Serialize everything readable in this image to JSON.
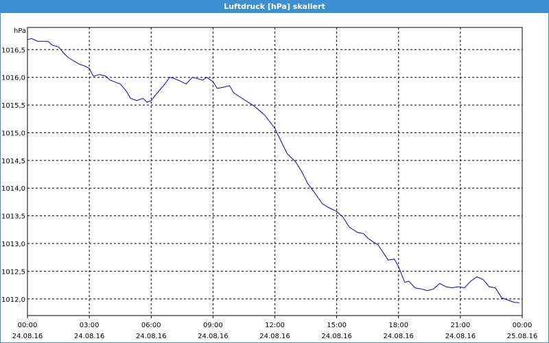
{
  "window": {
    "title": "Luftdruck [hPa] skaliert"
  },
  "chart_data": {
    "type": "line",
    "title": "Luftdruck [hPa] skaliert",
    "ylabel": "hPa",
    "xlabel": "",
    "ylim": [
      1011.7,
      1016.9
    ],
    "xlim": [
      0,
      24
    ],
    "grid": true,
    "line_color": "#0000cc",
    "yticks": [
      "1012,0",
      "1012,5",
      "1013,0",
      "1013,5",
      "1014,0",
      "1014,5",
      "1015,0",
      "1015,5",
      "1016,0",
      "1016,5"
    ],
    "ytick_values": [
      1012.0,
      1012.5,
      1013.0,
      1013.5,
      1014.0,
      1014.5,
      1015.0,
      1015.5,
      1016.0,
      1016.5
    ],
    "xticks": [
      {
        "time": "00:00",
        "date": "24.08.16"
      },
      {
        "time": "03:00",
        "date": "24.08.16"
      },
      {
        "time": "06:00",
        "date": "24.08.16"
      },
      {
        "time": "09:00",
        "date": "24.08.16"
      },
      {
        "time": "12:00",
        "date": "24.08.16"
      },
      {
        "time": "15:00",
        "date": "24.08.16"
      },
      {
        "time": "18:00",
        "date": "24.08.16"
      },
      {
        "time": "21:00",
        "date": "24.08.16"
      },
      {
        "time": "00:00",
        "date": "25.08.16"
      }
    ],
    "series": [
      {
        "x": [
          0,
          0.2,
          0.5,
          1.0,
          1.2,
          1.5,
          1.8,
          2.0,
          2.5,
          2.8,
          3.0,
          3.2,
          3.5,
          3.8,
          4.0,
          4.5,
          4.8,
          5.0,
          5.3,
          5.6,
          5.8,
          6.0,
          6.3,
          6.6,
          6.9,
          7.1,
          7.3,
          7.7,
          8.0,
          8.2,
          8.5,
          8.7,
          9.0,
          9.2,
          9.5,
          9.8,
          10.0,
          10.5,
          11.0,
          11.5,
          12.0,
          12.3,
          12.6,
          13.0,
          13.3,
          13.6,
          14.0,
          14.3,
          14.6,
          15.0,
          15.3,
          15.6,
          16.0,
          16.3,
          16.5,
          16.8,
          17.0,
          17.5,
          17.8,
          18.0,
          18.3,
          18.5,
          18.8,
          19.1,
          19.4,
          19.7,
          20.0,
          20.3,
          20.6,
          20.9,
          21.2,
          21.5,
          21.8,
          22.1,
          22.4,
          22.7,
          23.0,
          23.3,
          23.6,
          23.85
        ],
        "values": [
          1016.68,
          1016.7,
          1016.65,
          1016.65,
          1016.58,
          1016.55,
          1016.42,
          1016.35,
          1016.24,
          1016.2,
          1016.16,
          1016.02,
          1016.05,
          1016.02,
          1015.95,
          1015.88,
          1015.75,
          1015.62,
          1015.58,
          1015.62,
          1015.55,
          1015.58,
          1015.72,
          1015.85,
          1016.0,
          1015.98,
          1015.95,
          1015.88,
          1016.0,
          1015.98,
          1015.95,
          1016.0,
          1015.92,
          1015.8,
          1015.82,
          1015.85,
          1015.72,
          1015.6,
          1015.48,
          1015.32,
          1015.08,
          1014.85,
          1014.62,
          1014.48,
          1014.3,
          1014.08,
          1013.88,
          1013.72,
          1013.65,
          1013.58,
          1013.48,
          1013.3,
          1013.2,
          1013.18,
          1013.1,
          1013.02,
          1012.98,
          1012.7,
          1012.72,
          1012.58,
          1012.3,
          1012.32,
          1012.2,
          1012.18,
          1012.15,
          1012.18,
          1012.28,
          1012.22,
          1012.2,
          1012.22,
          1012.2,
          1012.32,
          1012.4,
          1012.35,
          1012.22,
          1012.2,
          1012.02,
          1011.98,
          1011.94,
          1011.93
        ]
      }
    ]
  }
}
